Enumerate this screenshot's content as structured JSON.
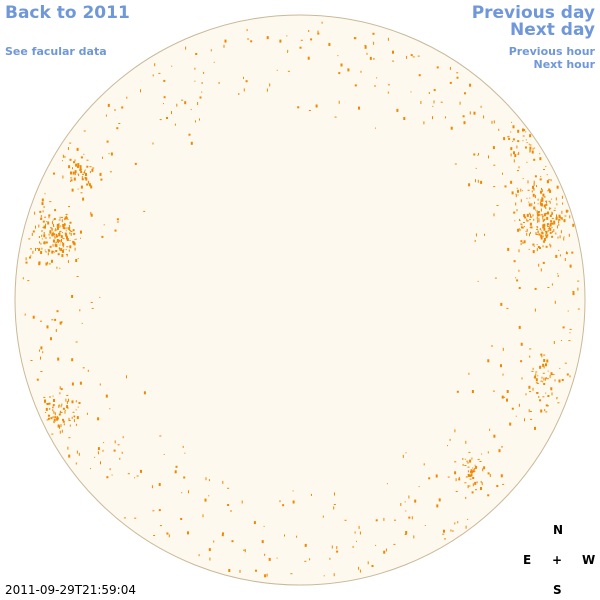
{
  "nav": {
    "back": "Back to 2011",
    "facular": "See facular data",
    "prev_day": "Previous day",
    "next_day": "Next day",
    "prev_hour": "Previous hour",
    "next_hour": "Next hour"
  },
  "timestamp": "2011-09-29T21:59:04",
  "compass": {
    "north": "N",
    "east": "E",
    "center": "+",
    "west": "W",
    "south": "S"
  },
  "colors": {
    "link": "#6f97d9",
    "disk_fill": "#fef9ee",
    "disk_outline": "#c9b99a",
    "faculae": "#ee8800"
  }
}
